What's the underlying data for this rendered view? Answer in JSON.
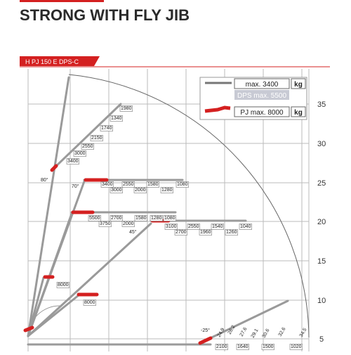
{
  "header": {
    "title": "STRONG WITH FLY JIB",
    "model": "H PJ 150 E DPS-C"
  },
  "legend": {
    "items": [
      {
        "label": "max. 3400",
        "unit": "kg",
        "sub": "DPS max. 5500"
      },
      {
        "label": "PJ max. 8000",
        "unit": "kg"
      }
    ]
  },
  "axis": {
    "ticks": [
      35,
      30,
      25,
      20,
      15,
      10,
      5
    ]
  },
  "angles": [
    "80°",
    "70°",
    "45°",
    "-25°"
  ],
  "loads": {
    "jib_80": [
      "1980",
      "1340",
      "1740",
      "2150",
      "2550",
      "3000",
      "3400"
    ],
    "jib_70_top": [
      "3400",
      "2550",
      "1580",
      "1080"
    ],
    "jib_70_bottom": [
      "3000",
      "2000",
      "1280"
    ],
    "jib_mid_top": [
      "5500",
      "2700",
      "1580",
      "1280",
      "1080"
    ],
    "jib_mid_bottom": [
      "3750",
      "2000"
    ],
    "jib_45_top": [
      "3100",
      "2550",
      "1540",
      "1040"
    ],
    "jib_45_bottom": [
      "2700",
      "1960",
      "1260"
    ],
    "boom_short": [
      "8000",
      "8000"
    ],
    "jib_low": [
      "2100",
      "1640",
      "1500",
      "1020"
    ]
  },
  "outreach": [
    "24.9",
    "26.2",
    "27.6",
    "29.1",
    "30.6",
    "32.6",
    "34.5"
  ]
}
